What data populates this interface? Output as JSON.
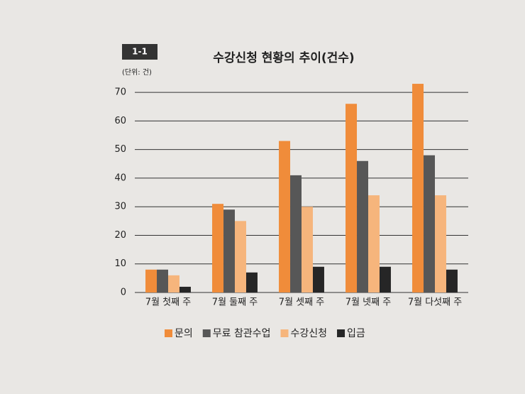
{
  "chart_data": {
    "type": "bar",
    "badge": "1-1",
    "title": "수강신청 현황의 추이(건수)",
    "unit_label": "(단위: 건)",
    "categories": [
      "7월 첫째 주",
      "7월 둘째 주",
      "7월 셋째 주",
      "7월 넷째 주",
      "7월 다섯째 주"
    ],
    "series": [
      {
        "name": "문의",
        "color": "#f08c3a",
        "values": [
          8,
          31,
          53,
          66,
          73
        ]
      },
      {
        "name": "무료 참관수업",
        "color": "#575757",
        "values": [
          8,
          29,
          41,
          46,
          48
        ]
      },
      {
        "name": "수강신청",
        "color": "#f6b57c",
        "values": [
          6,
          25,
          30,
          34,
          34
        ]
      },
      {
        "name": "입금",
        "color": "#262626",
        "values": [
          2,
          7,
          9,
          9,
          8
        ]
      }
    ],
    "ylim": [
      0,
      75
    ],
    "yticks": [
      0,
      10,
      20,
      30,
      40,
      50,
      60,
      70
    ],
    "grid": true,
    "legend": "bottom"
  }
}
